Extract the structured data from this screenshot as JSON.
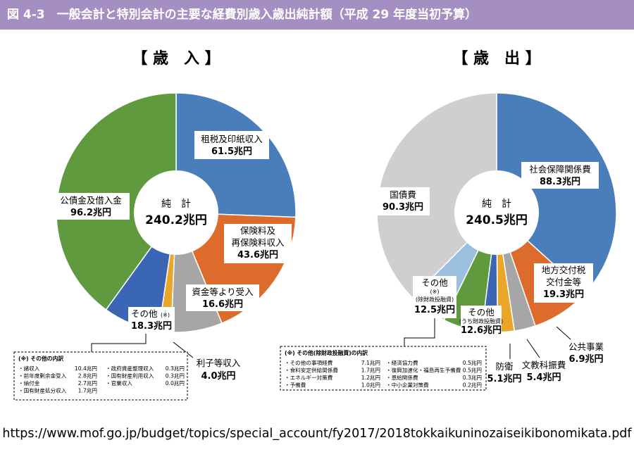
{
  "header": {
    "title": "図 4-3　一般会計と特別会計の主要な経費別歳入歳出純計額（平成 29 年度当初予算）",
    "background_color": "#a58fc2"
  },
  "source_url": "https://www.mof.go.jp/budget/topics/special_account/fy2017/2018tokkaikuninozaiseikibonomikata.pdf",
  "chart_data": [
    {
      "type": "pie",
      "heading": "【 歳　入 】",
      "unit": "兆円",
      "total_label": "純　計",
      "total_value": "240.2兆円",
      "slices": [
        {
          "label": "租税及印紙収入",
          "value": 61.5,
          "value_label": "61.5兆円",
          "color": "#4a7ebb"
        },
        {
          "label": "保険料及再保険料収入",
          "value": 43.6,
          "value_label": "43.6兆円",
          "color": "#dd6b2c"
        },
        {
          "label": "資金等より受入",
          "value": 16.6,
          "value_label": "16.6兆円",
          "color": "#a6a6a6"
        },
        {
          "label": "利子等収入",
          "value": 4.0,
          "value_label": "4.0兆円",
          "color": "#e8a72a"
        },
        {
          "label": "その他",
          "note": "(※)",
          "value": 18.3,
          "value_label": "18.3兆円",
          "color": "#3b65b5"
        },
        {
          "label": "公債金及借入金",
          "value": 96.2,
          "value_label": "96.2兆円",
          "color": "#5f9a3e"
        }
      ],
      "other_breakdown": {
        "title": "(※) その他の内訳",
        "items": [
          {
            "name": "・諸収入",
            "value": "10.4兆円"
          },
          {
            "name": "・前年度剰余金受入",
            "value": "2.8兆円"
          },
          {
            "name": "・納付金",
            "value": "2.7兆円"
          },
          {
            "name": "・国有財産処分収入",
            "value": "1.7兆円"
          },
          {
            "name": "・政府資産整理収入",
            "value": "0.3兆円"
          },
          {
            "name": "・国有財産利用収入",
            "value": "0.3兆円"
          },
          {
            "name": "・官業収入",
            "value": "0.0兆円"
          }
        ]
      }
    },
    {
      "type": "pie",
      "heading": "【 歳　出 】",
      "unit": "兆円",
      "total_label": "純　計",
      "total_value": "240.5兆円",
      "slices": [
        {
          "label": "社会保障関係費",
          "value": 88.3,
          "value_label": "88.3兆円",
          "color": "#4a7ebb"
        },
        {
          "label": "地方交付税交付金等",
          "value": 19.3,
          "value_label": "19.3兆円",
          "color": "#dd6b2c"
        },
        {
          "label": "公共事業",
          "value": 6.9,
          "value_label": "6.9兆円",
          "color": "#a6a6a6"
        },
        {
          "label": "文教科振費",
          "value": 5.4,
          "value_label": "5.4兆円",
          "color": "#e8a72a"
        },
        {
          "label": "防衛",
          "value": 5.1,
          "value_label": "5.1兆円",
          "color": "#3b65b5"
        },
        {
          "label": "その他",
          "note": "(うち財政投融資)",
          "value": 12.6,
          "value_label": "12.6兆円",
          "color": "#5f9a3e"
        },
        {
          "label": "その他",
          "note": "(※)",
          "note2": "(除財政投融資)",
          "value": 12.5,
          "value_label": "12.5兆円",
          "color": "#9cbfe0"
        },
        {
          "label": "国債費",
          "value": 90.3,
          "value_label": "90.3兆円",
          "color": "#cfcfcf"
        }
      ],
      "other_breakdown": {
        "title": "(※) その他(除財政投融資)の内訳",
        "items": [
          {
            "name": "・その他の事項経費",
            "value": "7.1兆円"
          },
          {
            "name": "・食料安定供給関係費",
            "value": "1.7兆円"
          },
          {
            "name": "・エネルギー対策費",
            "value": "1.2兆円"
          },
          {
            "name": "・予備費",
            "value": "1.0兆円"
          },
          {
            "name": "・経済協力費",
            "value": "0.5兆円"
          },
          {
            "name": "・復興加速化・福島再生予備費",
            "value": "0.5兆円"
          },
          {
            "name": "・恩給関係費",
            "value": "0.3兆円"
          },
          {
            "name": "・中小企業対策費",
            "value": "0.2兆円"
          }
        ]
      }
    }
  ]
}
